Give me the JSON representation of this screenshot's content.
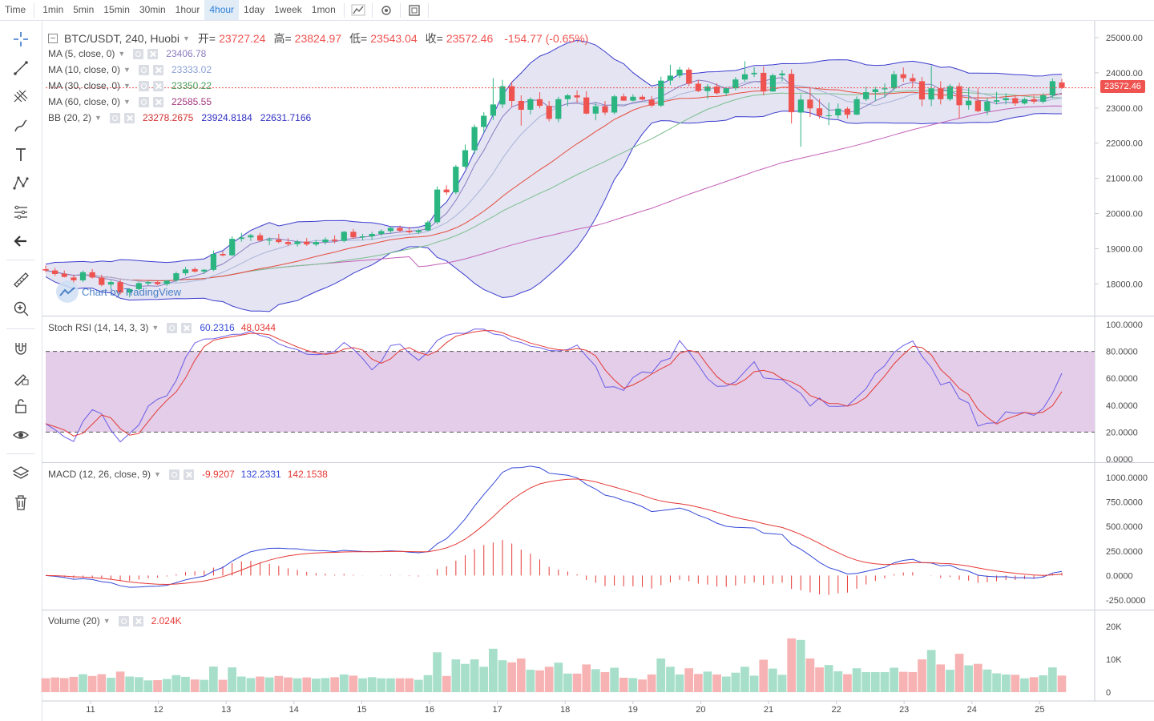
{
  "toolbar": {
    "timeframes": [
      "Time",
      "1min",
      "5min",
      "15min",
      "30min",
      "1hour",
      "4hour",
      "1day",
      "1week",
      "1mon"
    ],
    "active": "4hour",
    "icons": [
      "line-chart-icon",
      "settings-icon",
      "fullscreen-icon"
    ]
  },
  "sidebar": {
    "tools": [
      "crosshair-icon",
      "trend-line-icon",
      "pitchfork-icon",
      "brush-icon",
      "text-icon",
      "pattern-icon",
      "fib-icon",
      "back-arrow-icon",
      "ruler-icon",
      "zoom-in-icon",
      "magnet-icon",
      "lock-drawing-icon",
      "lock-icon",
      "eye-icon",
      "layers-icon",
      "trash-icon"
    ]
  },
  "colors": {
    "up": "#26a69a",
    "down": "#ef5350",
    "upFill": "#2bb581",
    "bb": "#3c3ccf",
    "ma5": "#8b7bc0",
    "ma10": "#a9b4d6",
    "ma30": "#7bbf8c",
    "ma60": "#c45fb8",
    "midline": "#e74c3c",
    "stoch": "#6a5de8",
    "macd": "#3448d8"
  },
  "main_legend": {
    "symbol": "BTC/USDT, 240, Huobi",
    "open_label": "开=",
    "open": "23727.24",
    "high_label": "高=",
    "high": "23824.97",
    "low_label": "低=",
    "low": "23543.04",
    "close_label": "收=",
    "close": "23572.46",
    "change": "-154.77 (-0.65%)"
  },
  "indicators": [
    {
      "name": "MA (5, close, 0)",
      "values": [
        "23406.78"
      ],
      "colors": [
        "#8b7bc0"
      ]
    },
    {
      "name": "MA (10, close, 0)",
      "values": [
        "23333.02"
      ],
      "colors": [
        "#8aa1d6"
      ]
    },
    {
      "name": "MA (30, close, 0)",
      "values": [
        "23350.22"
      ],
      "colors": [
        "#4a9d5a"
      ]
    },
    {
      "name": "MA (60, close, 0)",
      "values": [
        "22585.55"
      ],
      "colors": [
        "#a1387f"
      ]
    },
    {
      "name": "BB (20, 2)",
      "values": [
        "23278.2675",
        "23924.8184",
        "22631.7166"
      ],
      "colors": [
        "#d32f2f",
        "#2e2ec4",
        "#2e2ec4"
      ]
    }
  ],
  "last_price": "23572.46",
  "watermark": "Chart by TradingView",
  "stoch": {
    "name": "Stoch RSI (14, 14, 3, 3)",
    "k": "60.2316",
    "d": "48.0344"
  },
  "macd": {
    "name": "MACD (12, 26, close, 9)",
    "hist": "-9.9207",
    "macd": "132.2331",
    "signal": "142.1538"
  },
  "volume": {
    "name": "Volume (20)",
    "value": "2.024K"
  },
  "axes": {
    "price": [
      "25000.00",
      "24000.00",
      "23000.00",
      "22000.00",
      "21000.00",
      "20000.00",
      "19000.00",
      "18000.00"
    ],
    "stoch": [
      "100.0000",
      "80.0000",
      "60.0000",
      "40.0000",
      "20.0000",
      "0.0000"
    ],
    "macd": [
      "1000.0000",
      "750.0000",
      "500.0000",
      "250.0000",
      "0.0000",
      "-250.0000"
    ],
    "volume": [
      "20K",
      "10K",
      "0"
    ],
    "dates": [
      "11",
      "12",
      "13",
      "14",
      "15",
      "16",
      "17",
      "18",
      "19",
      "20",
      "21",
      "22",
      "23",
      "24",
      "25"
    ]
  },
  "chart_data": {
    "type": "candlestick",
    "ohlc": [
      [
        18420,
        18520,
        18330,
        18380
      ],
      [
        18380,
        18450,
        18230,
        18280
      ],
      [
        18290,
        18380,
        18180,
        18200
      ],
      [
        18180,
        18260,
        18020,
        18100
      ],
      [
        18100,
        18380,
        18050,
        18330
      ],
      [
        18330,
        18420,
        18150,
        18180
      ],
      [
        18180,
        18260,
        17930,
        17970
      ],
      [
        17980,
        18100,
        17890,
        18050
      ],
      [
        18050,
        18120,
        17700,
        17750
      ],
      [
        17750,
        17870,
        17620,
        17850
      ],
      [
        17850,
        18050,
        17820,
        18020
      ],
      [
        18010,
        18080,
        17960,
        18050
      ],
      [
        18050,
        18090,
        17960,
        17990
      ],
      [
        17990,
        18110,
        17940,
        18090
      ],
      [
        18100,
        18350,
        18050,
        18300
      ],
      [
        18300,
        18480,
        18240,
        18410
      ],
      [
        18420,
        18470,
        18320,
        18350
      ],
      [
        18350,
        18420,
        18280,
        18400
      ],
      [
        18400,
        18950,
        18360,
        18850
      ],
      [
        18850,
        18920,
        18780,
        18810
      ],
      [
        18810,
        19350,
        18790,
        19280
      ],
      [
        19280,
        19450,
        19200,
        19320
      ],
      [
        19320,
        19420,
        19220,
        19380
      ],
      [
        19380,
        19450,
        19200,
        19230
      ],
      [
        19230,
        19320,
        19100,
        19260
      ],
      [
        19260,
        19420,
        19150,
        19190
      ],
      [
        19190,
        19300,
        19080,
        19130
      ],
      [
        19130,
        19250,
        19060,
        19200
      ],
      [
        19200,
        19300,
        19080,
        19120
      ],
      [
        19120,
        19250,
        19070,
        19190
      ],
      [
        19190,
        19320,
        19120,
        19260
      ],
      [
        19260,
        19380,
        19150,
        19220
      ],
      [
        19220,
        19500,
        19180,
        19480
      ],
      [
        19480,
        19560,
        19280,
        19320
      ],
      [
        19320,
        19420,
        19230,
        19350
      ],
      [
        19350,
        19480,
        19250,
        19420
      ],
      [
        19420,
        19550,
        19360,
        19500
      ],
      [
        19500,
        19630,
        19440,
        19590
      ],
      [
        19590,
        19660,
        19470,
        19510
      ],
      [
        19510,
        19620,
        19430,
        19470
      ],
      [
        19470,
        19560,
        19420,
        19520
      ],
      [
        19520,
        19800,
        19500,
        19750
      ],
      [
        19750,
        20770,
        19700,
        20680
      ],
      [
        20680,
        20800,
        20530,
        20600
      ],
      [
        20600,
        21380,
        20550,
        21330
      ],
      [
        21330,
        21960,
        21280,
        21800
      ],
      [
        21800,
        22530,
        21700,
        22460
      ],
      [
        22460,
        22880,
        22300,
        22780
      ],
      [
        22780,
        23850,
        22660,
        23100
      ],
      [
        23100,
        23800,
        23000,
        23620
      ],
      [
        23620,
        23750,
        23020,
        23200
      ],
      [
        23200,
        23360,
        22500,
        22950
      ],
      [
        22950,
        23300,
        22820,
        23250
      ],
      [
        23250,
        23450,
        22990,
        23060
      ],
      [
        23060,
        23200,
        22620,
        22690
      ],
      [
        22690,
        23320,
        22600,
        23250
      ],
      [
        23250,
        23400,
        23050,
        23360
      ],
      [
        23360,
        23500,
        23150,
        23300
      ],
      [
        23300,
        23480,
        22820,
        22840
      ],
      [
        22840,
        23150,
        22650,
        23050
      ],
      [
        23050,
        23200,
        22800,
        22870
      ],
      [
        22870,
        23370,
        22820,
        23330
      ],
      [
        23330,
        23410,
        23200,
        23210
      ],
      [
        23210,
        23390,
        23190,
        23320
      ],
      [
        23320,
        23370,
        23220,
        23240
      ],
      [
        23240,
        23340,
        23020,
        23070
      ],
      [
        23070,
        23890,
        23030,
        23780
      ],
      [
        23780,
        24230,
        23650,
        23920
      ],
      [
        23920,
        24170,
        23850,
        24090
      ],
      [
        24090,
        24150,
        23620,
        23690
      ],
      [
        23690,
        23790,
        23450,
        23480
      ],
      [
        23480,
        23680,
        23260,
        23610
      ],
      [
        23610,
        23700,
        23380,
        23420
      ],
      [
        23420,
        23590,
        23340,
        23560
      ],
      [
        23560,
        23880,
        23500,
        23810
      ],
      [
        23810,
        24330,
        23750,
        23960
      ],
      [
        23960,
        24160,
        23880,
        24000
      ],
      [
        24000,
        24180,
        23360,
        23470
      ],
      [
        23470,
        23980,
        23460,
        23930
      ],
      [
        23930,
        24070,
        23760,
        23980
      ],
      [
        23970,
        24100,
        22560,
        22880
      ],
      [
        22870,
        23390,
        21900,
        23240
      ],
      [
        23240,
        23600,
        22740,
        22990
      ],
      [
        22990,
        23260,
        22700,
        22780
      ],
      [
        22780,
        23150,
        22510,
        22790
      ],
      [
        22790,
        23130,
        22700,
        22980
      ],
      [
        22980,
        23030,
        22700,
        22810
      ],
      [
        22810,
        23330,
        22800,
        23250
      ],
      [
        23250,
        23600,
        23200,
        23450
      ],
      [
        23450,
        23600,
        23200,
        23530
      ],
      [
        23530,
        23700,
        23300,
        23560
      ],
      [
        23560,
        24050,
        23500,
        23960
      ],
      [
        23960,
        24150,
        23740,
        23850
      ],
      [
        23850,
        23980,
        23580,
        23760
      ],
      [
        23760,
        23880,
        23050,
        23240
      ],
      [
        23240,
        24200,
        23050,
        23560
      ],
      [
        23560,
        23760,
        23100,
        23250
      ],
      [
        23250,
        23680,
        23200,
        23620
      ],
      [
        23620,
        23720,
        22700,
        23080
      ],
      [
        23080,
        23580,
        22950,
        23210
      ],
      [
        23210,
        23560,
        22880,
        22910
      ],
      [
        22910,
        23290,
        22800,
        23180
      ],
      [
        23180,
        23460,
        23100,
        23220
      ],
      [
        23220,
        23420,
        23100,
        23280
      ],
      [
        23280,
        23370,
        23060,
        23130
      ],
      [
        23130,
        23290,
        23100,
        23250
      ],
      [
        23250,
        23350,
        23120,
        23180
      ],
      [
        23180,
        23420,
        23130,
        23360
      ],
      [
        23360,
        23840,
        23280,
        23760
      ],
      [
        23727,
        23825,
        23543,
        23572
      ]
    ]
  }
}
